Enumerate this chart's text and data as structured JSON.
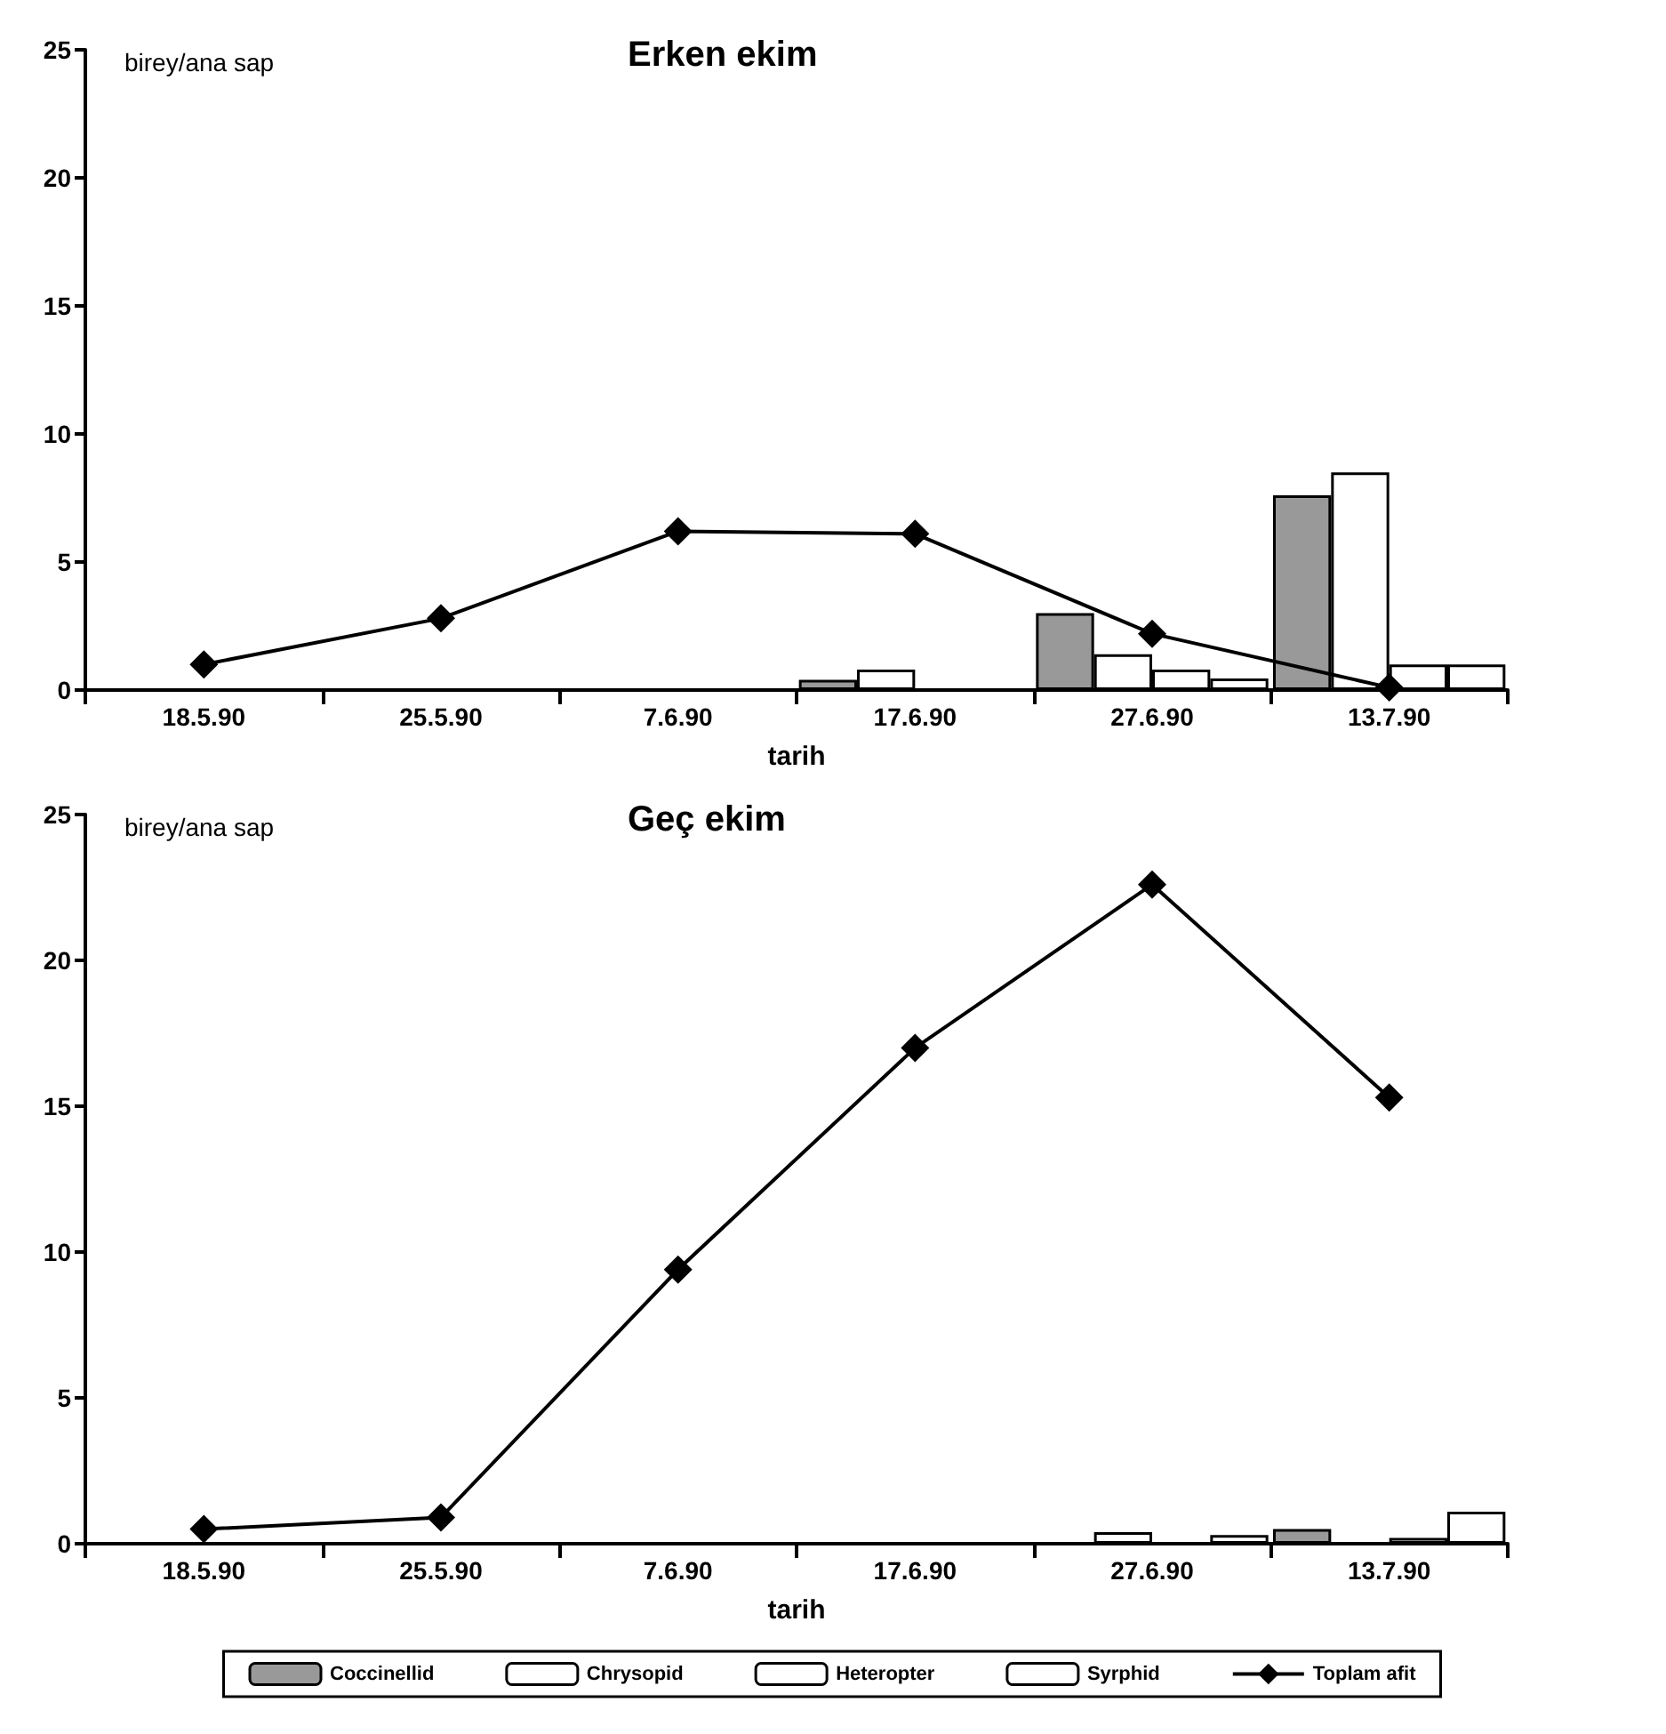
{
  "chart_data": [
    {
      "type": "bar",
      "title": "Erken ekim",
      "xlabel": "tarih",
      "ylabel": "birey/ana sap",
      "categories": [
        "18.5.90",
        "25.5.90",
        "7.6.90",
        "17.6.90",
        "27.6.90",
        "13.7.90"
      ],
      "series": [
        {
          "color": "#999999",
          "values": [
            null,
            null,
            null,
            0.4,
            3.0,
            7.6
          ]
        },
        {
          "color": "#ffffff",
          "values": [
            null,
            null,
            null,
            0.8,
            1.4,
            8.5
          ]
        },
        {
          "color": "#ffffff",
          "values": [
            null,
            null,
            null,
            null,
            0.8,
            1.0
          ]
        },
        {
          "color": "#ffffff",
          "values": [
            null,
            null,
            null,
            null,
            0.45,
            1.0
          ]
        },
        {
          "type": "line",
          "color": "#000000",
          "values": [
            1.0,
            2.8,
            6.2,
            6.1,
            2.2,
            0.1
          ]
        }
      ],
      "ylim": [
        0,
        25
      ],
      "yticks": [
        0,
        5,
        10,
        15,
        20,
        25
      ],
      "grid": false,
      "legend": false,
      "marker": "diamond",
      "line_style": "solid"
    },
    {
      "type": "bar",
      "title": "Geç ekim",
      "xlabel": "tarih",
      "ylabel": "birey/ana sap",
      "categories": [
        "18.5.90",
        "25.5.90",
        "7.6.90",
        "17.6.90",
        "27.6.90",
        "13.7.90"
      ],
      "series": [
        {
          "name": "Coccinellid",
          "color": "#999999",
          "values": [
            null,
            null,
            null,
            null,
            null,
            0.5
          ]
        },
        {
          "name": "Chrysopid",
          "color": "#ffffff",
          "values": [
            null,
            null,
            null,
            null,
            0.4,
            null
          ]
        },
        {
          "name": "Heteropter",
          "color": "#ffffff",
          "values": [
            null,
            null,
            null,
            null,
            null,
            0.2
          ]
        },
        {
          "name": "Syrphid",
          "color": "#ffffff",
          "values": [
            null,
            null,
            null,
            null,
            0.3,
            1.1
          ]
        },
        {
          "name": "Toplam afit",
          "type": "line",
          "color": "#000000",
          "values": [
            0.5,
            0.9,
            9.4,
            17.0,
            22.6,
            15.3
          ]
        }
      ],
      "ylim": [
        0,
        25
      ],
      "yticks": [
        0,
        5,
        10,
        15,
        20,
        25
      ],
      "grid": false,
      "legend": "bottom",
      "marker": "diamond",
      "line_style": "solid"
    }
  ]
}
